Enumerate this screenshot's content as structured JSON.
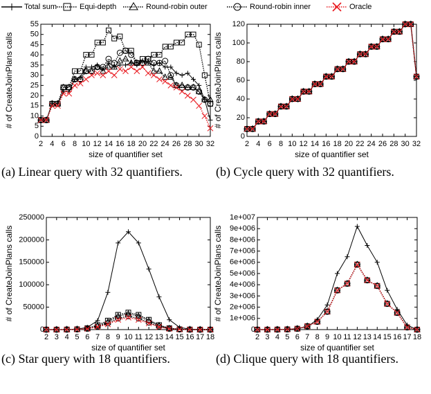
{
  "chart_data": [
    {
      "type": "line",
      "caption": "(a) Linear query with 32 quantifiers.",
      "xlabel": "size of quantifier set",
      "ylabel": "# of CreateJoinPlans calls",
      "x": [
        2,
        3,
        4,
        5,
        6,
        7,
        8,
        9,
        10,
        11,
        12,
        13,
        14,
        15,
        16,
        17,
        18,
        19,
        20,
        21,
        22,
        23,
        24,
        25,
        26,
        27,
        28,
        29,
        30,
        31,
        32
      ],
      "xlim": [
        2,
        32
      ],
      "xticks": [
        2,
        4,
        6,
        8,
        10,
        12,
        14,
        16,
        18,
        20,
        22,
        24,
        26,
        28,
        30,
        32
      ],
      "ylim": [
        0,
        55
      ],
      "yticks": [
        0,
        5,
        10,
        15,
        20,
        25,
        30,
        35,
        40,
        45,
        50,
        55
      ],
      "series": [
        {
          "name": "Total sum",
          "color": "#000000",
          "style": "solid",
          "marker": "plus",
          "values": [
            8,
            8,
            16,
            16,
            22,
            22,
            28,
            29,
            34,
            34,
            35,
            33,
            36,
            34,
            35,
            35,
            36,
            35,
            37,
            36,
            35,
            36,
            34,
            34,
            31,
            30,
            31,
            28,
            25,
            18,
            8
          ]
        },
        {
          "name": "Equi-depth",
          "color": "#000000",
          "style": "dotted",
          "marker": "square",
          "values": [
            8,
            8,
            16,
            16,
            24,
            24,
            32,
            32,
            40,
            40,
            46,
            46,
            52,
            48,
            49,
            42,
            42,
            36,
            38,
            38,
            40,
            40,
            44,
            44,
            46,
            46,
            50,
            50,
            45,
            30,
            16
          ]
        },
        {
          "name": "Round-robin outer",
          "color": "#000000",
          "style": "dotted",
          "marker": "triangle",
          "values": [
            8,
            8,
            16,
            16,
            24,
            24,
            28,
            28,
            32,
            32,
            34,
            32,
            34,
            34,
            37,
            38,
            36,
            36,
            36,
            36,
            32,
            32,
            29,
            29,
            25,
            25,
            24,
            24,
            22,
            18,
            18
          ]
        },
        {
          "name": "Round-robin inner",
          "color": "#000000",
          "style": "dotted",
          "marker": "circle",
          "values": [
            8,
            8,
            16,
            16,
            24,
            24,
            28,
            28,
            32,
            32,
            34,
            34,
            38,
            36,
            41,
            42,
            40,
            36,
            36,
            38,
            36,
            36,
            37,
            30,
            25,
            24,
            24,
            24,
            22,
            18,
            16
          ]
        },
        {
          "name": "Oracle",
          "color": "#e8191f",
          "style": "dotted",
          "marker": "x",
          "values": [
            8,
            8,
            15,
            15,
            21,
            21,
            25,
            26,
            28,
            30,
            31,
            30,
            32,
            30,
            33,
            32,
            34,
            32,
            34,
            31,
            30,
            28,
            27,
            25,
            24,
            22,
            20,
            18,
            15,
            10,
            4
          ]
        }
      ]
    },
    {
      "type": "line",
      "caption": "(b) Cycle query with 32 quantifiers.",
      "xlabel": "size of quantifier set",
      "ylabel": "# of CreateJoinPlans calls",
      "x": [
        2,
        3,
        4,
        5,
        6,
        7,
        8,
        9,
        10,
        11,
        12,
        13,
        14,
        15,
        16,
        17,
        18,
        19,
        20,
        21,
        22,
        23,
        24,
        25,
        26,
        27,
        28,
        29,
        30,
        31,
        32
      ],
      "xlim": [
        2,
        32
      ],
      "xticks": [
        2,
        4,
        6,
        8,
        10,
        12,
        14,
        16,
        18,
        20,
        22,
        24,
        26,
        28,
        30,
        32
      ],
      "ylim": [
        0,
        120
      ],
      "yticks": [
        0,
        20,
        40,
        60,
        80,
        100,
        120
      ],
      "series": [
        {
          "name": "Total sum",
          "color": "#000000",
          "style": "solid",
          "marker": "plus",
          "values": [
            8,
            8,
            16,
            16,
            24,
            24,
            32,
            32,
            40,
            40,
            48,
            48,
            56,
            56,
            64,
            64,
            72,
            72,
            80,
            80,
            88,
            88,
            96,
            96,
            104,
            104,
            112,
            112,
            120,
            120,
            64
          ]
        },
        {
          "name": "Equi-depth",
          "color": "#000000",
          "style": "dotted",
          "marker": "square",
          "values": [
            8,
            8,
            16,
            16,
            24,
            24,
            32,
            32,
            40,
            40,
            48,
            48,
            56,
            56,
            64,
            64,
            72,
            72,
            80,
            80,
            88,
            88,
            96,
            96,
            104,
            104,
            112,
            112,
            120,
            120,
            64
          ]
        },
        {
          "name": "Round-robin outer",
          "color": "#000000",
          "style": "dotted",
          "marker": "triangle",
          "values": [
            8,
            8,
            16,
            16,
            24,
            24,
            32,
            32,
            40,
            40,
            48,
            48,
            56,
            56,
            64,
            64,
            72,
            72,
            80,
            80,
            88,
            88,
            96,
            96,
            104,
            104,
            112,
            112,
            120,
            120,
            64
          ]
        },
        {
          "name": "Round-robin inner",
          "color": "#000000",
          "style": "dotted",
          "marker": "circle",
          "values": [
            8,
            8,
            16,
            16,
            24,
            24,
            32,
            32,
            40,
            40,
            48,
            48,
            56,
            56,
            64,
            64,
            72,
            72,
            80,
            80,
            88,
            88,
            96,
            96,
            104,
            104,
            112,
            112,
            120,
            120,
            64
          ]
        },
        {
          "name": "Oracle",
          "color": "#e8191f",
          "style": "dotted",
          "marker": "x",
          "values": [
            8,
            8,
            16,
            16,
            24,
            24,
            32,
            32,
            40,
            40,
            48,
            48,
            56,
            56,
            64,
            64,
            72,
            72,
            80,
            80,
            88,
            88,
            96,
            96,
            104,
            104,
            112,
            112,
            120,
            120,
            64
          ]
        }
      ]
    },
    {
      "type": "line",
      "caption": "(c) Star query with 18 quantifiers.",
      "xlabel": "size of quantifier set",
      "ylabel": "# of CreateJoinPlans calls",
      "x": [
        2,
        3,
        4,
        5,
        6,
        7,
        8,
        9,
        10,
        11,
        12,
        13,
        14,
        15,
        16,
        17,
        18
      ],
      "xlim": [
        2,
        18
      ],
      "xticks": [
        2,
        3,
        4,
        5,
        6,
        7,
        8,
        9,
        10,
        11,
        12,
        13,
        14,
        15,
        16,
        17,
        18
      ],
      "ylim": [
        0,
        250000
      ],
      "yticks": [
        0,
        50000,
        100000,
        150000,
        200000,
        250000
      ],
      "series": [
        {
          "name": "Total sum",
          "color": "#000000",
          "style": "solid",
          "marker": "plus",
          "values": [
            0,
            0,
            200,
            1000,
            5000,
            20000,
            83000,
            193000,
            218000,
            193000,
            135000,
            73000,
            22000,
            5000,
            1000,
            100,
            0
          ]
        },
        {
          "name": "Equi-depth",
          "color": "#000000",
          "style": "dotted",
          "marker": "square",
          "values": [
            0,
            0,
            200,
            800,
            3000,
            10000,
            20000,
            33000,
            38000,
            33000,
            22000,
            10000,
            3000,
            800,
            200,
            0,
            0
          ]
        },
        {
          "name": "Round-robin outer",
          "color": "#000000",
          "style": "dotted",
          "marker": "triangle",
          "values": [
            0,
            0,
            200,
            700,
            2500,
            8000,
            17000,
            30000,
            35000,
            30000,
            20000,
            9000,
            2500,
            700,
            200,
            0,
            0
          ]
        },
        {
          "name": "Round-robin inner",
          "color": "#000000",
          "style": "dotted",
          "marker": "circle",
          "values": [
            0,
            0,
            150,
            600,
            2000,
            7000,
            14000,
            25000,
            30000,
            25000,
            16000,
            7000,
            2000,
            600,
            150,
            0,
            0
          ]
        },
        {
          "name": "Oracle",
          "color": "#e8191f",
          "style": "dotted",
          "marker": "x",
          "values": [
            0,
            0,
            100,
            500,
            1800,
            6000,
            12000,
            22000,
            27000,
            22000,
            14000,
            6000,
            1800,
            500,
            100,
            0,
            0
          ]
        }
      ]
    },
    {
      "type": "line",
      "caption": "(d) Clique query with 18 quantifiers.",
      "xlabel": "size of quantifier set",
      "ylabel": "# of CreateJoinPlans calls",
      "x": [
        2,
        3,
        4,
        5,
        6,
        7,
        8,
        9,
        10,
        11,
        12,
        13,
        14,
        15,
        16,
        17,
        18
      ],
      "xlim": [
        2,
        18
      ],
      "xticks": [
        2,
        3,
        4,
        5,
        6,
        7,
        8,
        9,
        10,
        11,
        12,
        13,
        14,
        15,
        16,
        17,
        18
      ],
      "ylim": [
        0,
        10000000
      ],
      "yticks": [
        0,
        {
          "value": 1000000,
          "label": "1e+006"
        },
        {
          "value": 2000000,
          "label": "2e+006"
        },
        {
          "value": 3000000,
          "label": "3e+006"
        },
        {
          "value": 4000000,
          "label": "4e+006"
        },
        {
          "value": 5000000,
          "label": "5e+006"
        },
        {
          "value": 6000000,
          "label": "6e+006"
        },
        {
          "value": 7000000,
          "label": "7e+006"
        },
        {
          "value": 8000000,
          "label": "8e+006"
        },
        {
          "value": 9000000,
          "label": "9e+006"
        },
        {
          "value": 10000000,
          "label": "1e+007"
        }
      ],
      "series": [
        {
          "name": "Total sum",
          "color": "#000000",
          "style": "solid",
          "marker": "plus",
          "values": [
            0,
            0,
            5000,
            20000,
            80000,
            250000,
            900000,
            2200000,
            5000000,
            6500000,
            9200000,
            7500000,
            6000000,
            3500000,
            1800000,
            400000,
            0
          ]
        },
        {
          "name": "Equi-depth",
          "color": "#000000",
          "style": "dotted",
          "marker": "square",
          "values": [
            0,
            0,
            5000,
            20000,
            80000,
            300000,
            700000,
            1600000,
            3500000,
            4100000,
            5800000,
            4400000,
            3900000,
            2300000,
            1500000,
            200000,
            0
          ]
        },
        {
          "name": "Round-robin outer",
          "color": "#000000",
          "style": "dotted",
          "marker": "triangle",
          "values": [
            0,
            0,
            5000,
            20000,
            80000,
            300000,
            700000,
            1600000,
            3500000,
            4100000,
            5800000,
            4400000,
            3900000,
            2300000,
            1500000,
            200000,
            0
          ]
        },
        {
          "name": "Round-robin inner",
          "color": "#000000",
          "style": "dotted",
          "marker": "circle",
          "values": [
            0,
            0,
            5000,
            20000,
            80000,
            300000,
            700000,
            1600000,
            3500000,
            4100000,
            5800000,
            4400000,
            3900000,
            2300000,
            1500000,
            200000,
            0
          ]
        },
        {
          "name": "Oracle",
          "color": "#e8191f",
          "style": "dotted",
          "marker": "x",
          "values": [
            0,
            0,
            5000,
            20000,
            80000,
            300000,
            700000,
            1600000,
            3500000,
            4100000,
            5800000,
            4400000,
            3900000,
            2300000,
            1500000,
            200000,
            0
          ]
        }
      ]
    }
  ]
}
